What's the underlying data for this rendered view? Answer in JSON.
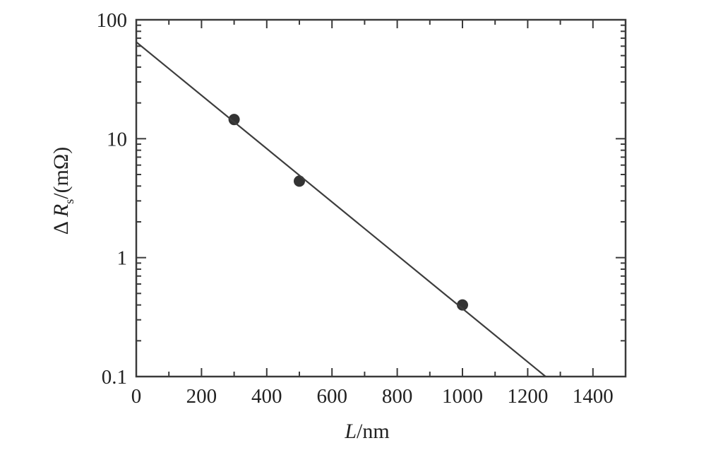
{
  "chart_data": {
    "type": "scatter",
    "title": "",
    "xlabel": {
      "symbol": "L",
      "unit": "/nm"
    },
    "ylabel": {
      "delta": "Δ",
      "symbol": "R",
      "subscript": "s",
      "unit": "/(mΩ)"
    },
    "xlim": [
      0,
      1500
    ],
    "ylim": [
      0.1,
      100
    ],
    "yscale": "log",
    "xticks": [
      "0",
      "200",
      "400",
      "600",
      "800",
      "1000",
      "1200",
      "1400"
    ],
    "xtick_values": [
      0,
      200,
      400,
      600,
      800,
      1000,
      1200,
      1400
    ],
    "yticks": [
      "0.1",
      "1",
      "10",
      "100"
    ],
    "ytick_values": [
      0.1,
      1,
      10,
      100
    ],
    "grid": false,
    "series": [
      {
        "type": "scatter",
        "x": [
          300,
          500,
          1000
        ],
        "y": [
          14.5,
          4.4,
          0.4
        ]
      },
      {
        "type": "line",
        "x": [
          0,
          1255
        ],
        "y": [
          65,
          0.1
        ]
      }
    ]
  }
}
